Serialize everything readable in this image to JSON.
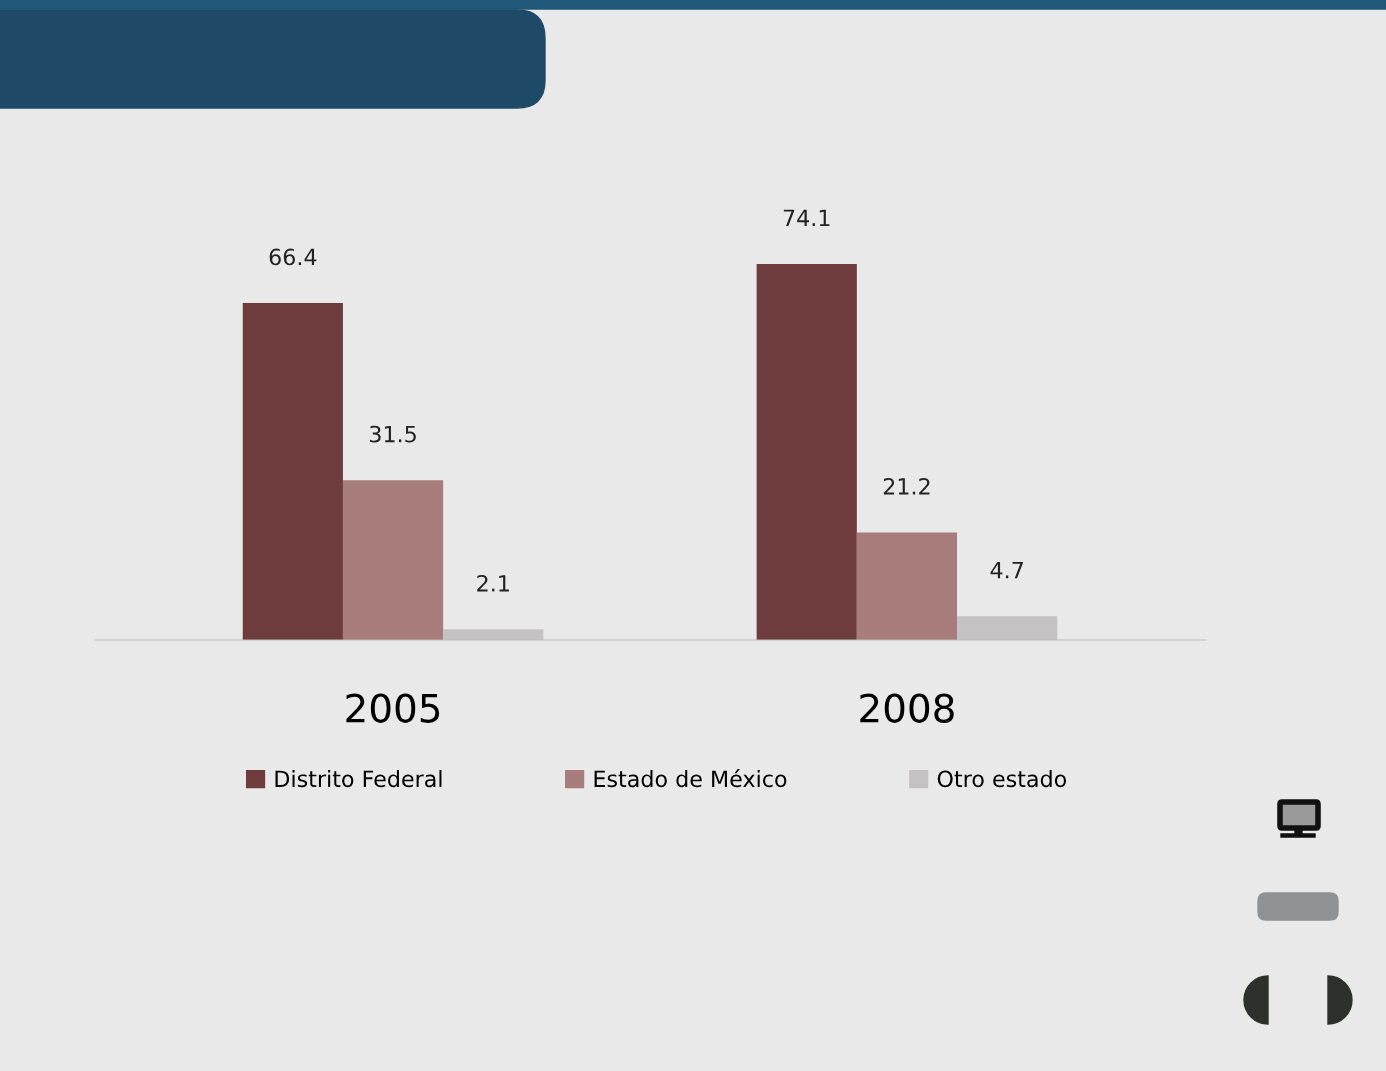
{
  "chart_data": {
    "type": "bar",
    "categories": [
      "2005",
      "2008"
    ],
    "series": [
      {
        "name": "Distrito Federal",
        "color": "#6e3c3c",
        "values": [
          66.4,
          74.1
        ]
      },
      {
        "name": "Estado de México",
        "color": "#a87c7a",
        "values": [
          31.5,
          21.2
        ]
      },
      {
        "name": "Otro estado",
        "color": "#c4c2c2",
        "values": [
          2.1,
          4.7
        ]
      }
    ],
    "data_labels": true,
    "legend": "bottom",
    "grid": false
  }
}
